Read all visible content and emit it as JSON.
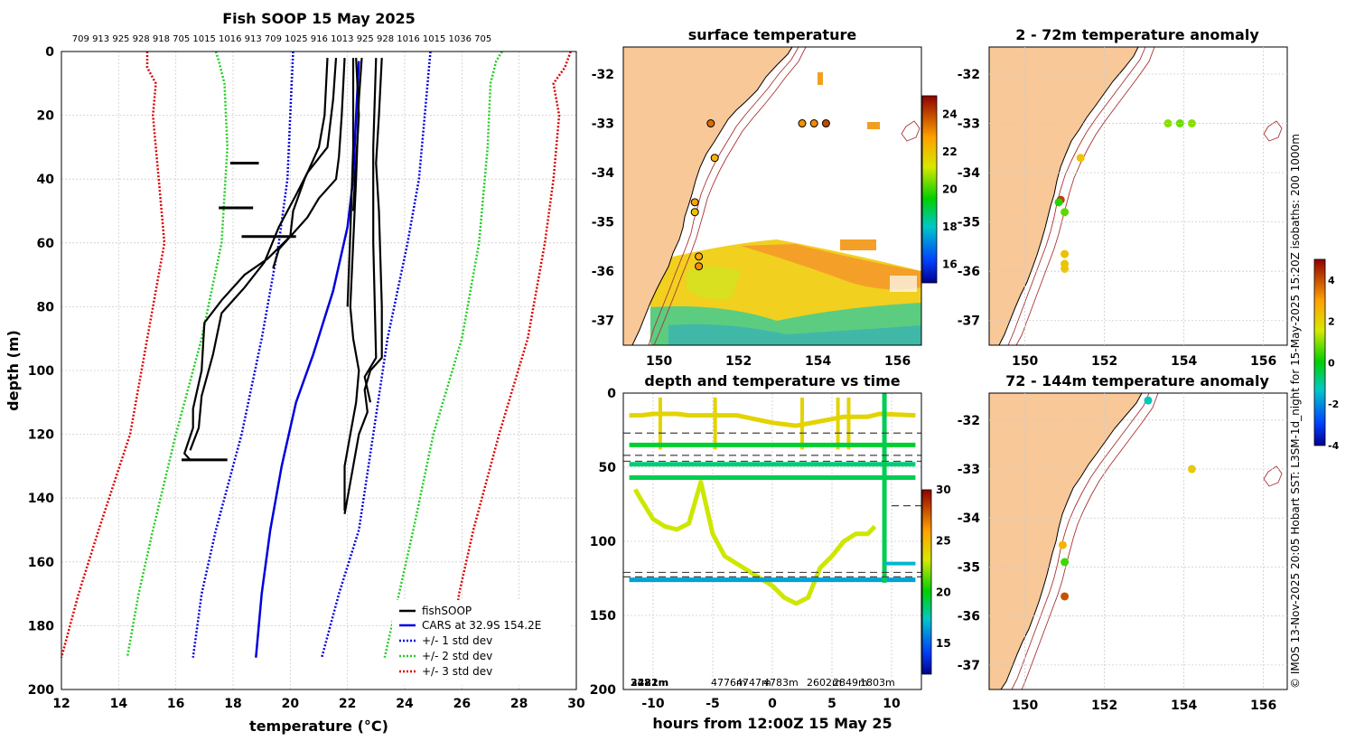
{
  "chart_data": [
    {
      "type": "line",
      "title": "Fish SOOP 15 May 2025",
      "xlabel": "temperature (°C)",
      "ylabel": "depth (m)",
      "xlim": [
        12,
        30
      ],
      "ylim": [
        200,
        0
      ],
      "xticks": [
        "12",
        "14",
        "16",
        "18",
        "20",
        "22",
        "24",
        "26",
        "28",
        "30"
      ],
      "yticks": [
        "0",
        "20",
        "40",
        "60",
        "80",
        "100",
        "120",
        "140",
        "160",
        "180",
        "200"
      ],
      "top_labels": "709 913 925 928 918 705 1015 1016 913 709 1025 916 1013 925 928 1016 1015 1036 705",
      "legend": [
        "fishSOOP",
        "CARS at 32.9S 154.2E",
        "+/- 1 std dev",
        "+/- 2 std dev",
        "+/- 3 std dev"
      ],
      "series": [
        {
          "name": "CARS mean",
          "color": "#0000dd",
          "style": "solid",
          "points": [
            [
              22.4,
              3
            ],
            [
              22.3,
              20
            ],
            [
              22.2,
              40
            ],
            [
              22,
              55
            ],
            [
              21.5,
              75
            ],
            [
              20.8,
              95
            ],
            [
              20.2,
              110
            ],
            [
              19.7,
              130
            ],
            [
              19.3,
              150
            ],
            [
              19.0,
              170
            ],
            [
              18.8,
              190
            ]
          ]
        },
        {
          "name": "+1 std",
          "color": "#0000dd",
          "style": "dotted",
          "points": [
            [
              24.9,
              0
            ],
            [
              24.7,
              20
            ],
            [
              24.5,
              40
            ],
            [
              24.1,
              60
            ],
            [
              23.4,
              90
            ],
            [
              22.9,
              120
            ],
            [
              22.4,
              150
            ],
            [
              21.7,
              170
            ],
            [
              21.1,
              190
            ]
          ]
        },
        {
          "name": "-1 std",
          "color": "#0000dd",
          "style": "dotted",
          "points": [
            [
              20.1,
              0
            ],
            [
              20.0,
              20
            ],
            [
              19.9,
              40
            ],
            [
              19.6,
              60
            ],
            [
              19.0,
              90
            ],
            [
              18.3,
              120
            ],
            [
              17.4,
              150
            ],
            [
              16.9,
              170
            ],
            [
              16.6,
              190
            ]
          ]
        },
        {
          "name": "+2 std",
          "color": "#22cc22",
          "style": "dotted",
          "points": [
            [
              27.4,
              0
            ],
            [
              27.2,
              3
            ],
            [
              27.0,
              10
            ],
            [
              26.9,
              30
            ],
            [
              26.6,
              60
            ],
            [
              26.0,
              90
            ],
            [
              25.0,
              120
            ],
            [
              24.3,
              150
            ],
            [
              23.8,
              170
            ],
            [
              23.3,
              190
            ]
          ]
        },
        {
          "name": "-2 std",
          "color": "#22cc22",
          "style": "dotted",
          "points": [
            [
              17.4,
              0
            ],
            [
              17.5,
              3
            ],
            [
              17.7,
              10
            ],
            [
              17.8,
              30
            ],
            [
              17.6,
              60
            ],
            [
              16.9,
              90
            ],
            [
              16.0,
              120
            ],
            [
              15.2,
              150
            ],
            [
              14.7,
              170
            ],
            [
              14.3,
              190
            ]
          ]
        },
        {
          "name": "+3 std",
          "color": "#dd0000",
          "style": "dotted",
          "points": [
            [
              29.8,
              0
            ],
            [
              29.6,
              5
            ],
            [
              29.2,
              10
            ],
            [
              29.4,
              20
            ],
            [
              29.2,
              40
            ],
            [
              28.9,
              60
            ],
            [
              28.3,
              90
            ],
            [
              27.3,
              120
            ],
            [
              26.4,
              150
            ],
            [
              25.9,
              170
            ],
            [
              25.6,
              190
            ]
          ]
        },
        {
          "name": "-3 std",
          "color": "#dd0000",
          "style": "dotted",
          "points": [
            [
              15.0,
              0
            ],
            [
              15.0,
              5
            ],
            [
              15.3,
              10
            ],
            [
              15.2,
              20
            ],
            [
              15.4,
              40
            ],
            [
              15.6,
              60
            ],
            [
              15.0,
              90
            ],
            [
              14.4,
              120
            ],
            [
              13.3,
              150
            ],
            [
              12.6,
              170
            ],
            [
              12.0,
              190
            ]
          ]
        }
      ],
      "profiles": [
        {
          "name": "fishSOOP A",
          "points": [
            [
              21.3,
              2
            ],
            [
              21.2,
              20
            ],
            [
              21.0,
              30
            ],
            [
              20.5,
              40
            ],
            [
              20.1,
              50
            ],
            [
              20.0,
              58
            ],
            [
              19.2,
              65
            ],
            [
              18.4,
              70
            ],
            [
              17.6,
              78
            ],
            [
              17.0,
              85
            ],
            [
              16.9,
              100
            ],
            [
              16.6,
              112
            ],
            [
              16.6,
              118
            ],
            [
              16.3,
              126
            ],
            [
              16.5,
              128
            ]
          ]
        },
        {
          "name": "fishSOOP B",
          "points": [
            [
              21.6,
              2
            ],
            [
              21.5,
              15
            ],
            [
              21.3,
              30
            ],
            [
              20.6,
              38
            ],
            [
              20.2,
              45
            ],
            [
              19.6,
              55
            ],
            [
              19.1,
              66
            ],
            [
              18.4,
              74
            ],
            [
              17.6,
              82
            ],
            [
              17.3,
              95
            ],
            [
              16.9,
              108
            ],
            [
              16.8,
              118
            ],
            [
              16.5,
              125
            ]
          ]
        },
        {
          "name": "fishSOOP C",
          "points": [
            [
              21.9,
              2
            ],
            [
              21.8,
              20
            ],
            [
              21.7,
              33
            ],
            [
              21.6,
              40
            ],
            [
              21.0,
              46
            ],
            [
              20.6,
              52
            ],
            [
              19.6,
              62
            ],
            [
              19.4,
              68
            ]
          ]
        },
        {
          "name": "fishSOOP D",
          "points": [
            [
              22.5,
              2
            ],
            [
              22.4,
              15
            ],
            [
              22.3,
              40
            ],
            [
              22.2,
              60
            ],
            [
              22.1,
              80
            ],
            [
              22.2,
              90
            ],
            [
              22.4,
              100
            ],
            [
              22.3,
              110
            ],
            [
              22.1,
              120
            ],
            [
              21.9,
              130
            ],
            [
              21.9,
              144
            ]
          ]
        },
        {
          "name": "fishSOOP E",
          "points": [
            [
              23.2,
              2
            ],
            [
              23.1,
              20
            ],
            [
              23.0,
              35
            ],
            [
              23.1,
              50
            ],
            [
              23.2,
              80
            ],
            [
              23.2,
              96
            ],
            [
              22.8,
              100
            ],
            [
              22.6,
              106
            ],
            [
              22.7,
              113
            ],
            [
              22.4,
              120
            ],
            [
              22.2,
              130
            ],
            [
              22.0,
              140
            ],
            [
              21.9,
              145
            ]
          ]
        },
        {
          "name": "fishSOOP F",
          "points": [
            [
              23.0,
              2
            ],
            [
              22.9,
              30
            ],
            [
              22.9,
              60
            ],
            [
              23.0,
              96
            ],
            [
              22.6,
              102
            ],
            [
              22.8,
              110
            ]
          ]
        },
        {
          "name": "fishSOOP G",
          "points": [
            [
              22.2,
              2
            ],
            [
              22.2,
              30
            ],
            [
              22.1,
              57
            ],
            [
              22.0,
              80
            ]
          ]
        },
        {
          "name": "fishSOOP H",
          "points": [
            [
              22.3,
              2
            ],
            [
              22.4,
              20
            ],
            [
              22.2,
              50
            ]
          ]
        }
      ],
      "spikes": [
        [
          17.9,
          35,
          18.9
        ],
        [
          17.5,
          49,
          18.7
        ],
        [
          18.3,
          58,
          20.2
        ],
        [
          16.2,
          128,
          17.8
        ]
      ]
    },
    {
      "type": "heatmap",
      "title": "surface temperature",
      "xticks": [
        "150",
        "152",
        "154",
        "156"
      ],
      "yticks": [
        "-32",
        "-33",
        "-34",
        "-35",
        "-36",
        "-37"
      ],
      "colorbar": {
        "ticks": [
          "16",
          "18",
          "20",
          "22",
          "24"
        ],
        "range": [
          15,
          25
        ]
      },
      "points": [
        [
          151.3,
          -33.0,
          23.5
        ],
        [
          153.6,
          -33.0,
          23.0
        ],
        [
          153.9,
          -33.0,
          23.1
        ],
        [
          154.2,
          -33.0,
          24.0
        ],
        [
          151.4,
          -33.7,
          22.4
        ],
        [
          150.9,
          -34.6,
          22.8
        ],
        [
          150.9,
          -34.8,
          22.0
        ],
        [
          151.0,
          -35.7,
          22.6
        ],
        [
          151.0,
          -35.9,
          23.0
        ]
      ]
    },
    {
      "type": "scatter",
      "title": "2 - 72m temperature anomaly",
      "xticks": [
        "150",
        "152",
        "154",
        "156"
      ],
      "yticks": [
        "-32",
        "-33",
        "-34",
        "-35",
        "-36",
        "-37"
      ],
      "colorbar": {
        "ticks": [
          "-4",
          "-2",
          "0",
          "2",
          "4"
        ],
        "range": [
          -4,
          5
        ]
      },
      "points": [
        [
          151.4,
          -33.7,
          2.3
        ],
        [
          153.6,
          -33.0,
          1.0
        ],
        [
          153.9,
          -33.0,
          0.8
        ],
        [
          154.2,
          -33.0,
          1.0
        ],
        [
          150.9,
          -34.55,
          4.2
        ],
        [
          150.85,
          -34.6,
          0.3
        ],
        [
          151.0,
          -34.8,
          0.7
        ],
        [
          151.0,
          -35.65,
          2.4
        ],
        [
          151.0,
          -35.85,
          2.3
        ],
        [
          151.0,
          -35.95,
          2.3
        ]
      ]
    },
    {
      "type": "scatter",
      "title": "72 - 144m temperature anomaly",
      "xticks": [
        "150",
        "152",
        "154",
        "156"
      ],
      "yticks": [
        "-32",
        "-33",
        "-34",
        "-35",
        "-36",
        "-37"
      ],
      "points": [
        [
          153.1,
          -31.6,
          -1.2
        ],
        [
          154.2,
          -33.0,
          2.2
        ],
        [
          150.95,
          -34.55,
          2.6
        ],
        [
          151.0,
          -34.9,
          0.5
        ],
        [
          151.0,
          -35.6,
          4.0
        ]
      ]
    },
    {
      "type": "scatter",
      "title": "depth and temperature vs time",
      "xlabel": "hours from 12:00Z 15 May 25",
      "xticks": [
        "-10",
        "-5",
        "0",
        "5",
        "10"
      ],
      "yticks": [
        "0",
        "50",
        "100",
        "150",
        "200"
      ],
      "colorbar": {
        "ticks": [
          "15",
          "20",
          "25",
          "30"
        ],
        "range": [
          12,
          30
        ]
      },
      "bottom_labels": [
        "3481m",
        "2222m",
        "4776m",
        "4747m",
        "4783m",
        "2602m",
        "2849m",
        "1803m"
      ],
      "dashed_depths": [
        27,
        42,
        46,
        76,
        121,
        124
      ],
      "tracks": [
        {
          "t0": -12,
          "t1": 12,
          "depth": 35,
          "temp": 19.5
        },
        {
          "t0": -12,
          "t1": 12,
          "depth": 48,
          "temp": 18.5
        },
        {
          "t0": -12,
          "t1": 12,
          "depth": 57,
          "temp": 19.0
        },
        {
          "t0": -12,
          "t1": 12,
          "depth": 126,
          "temp": 16.5
        }
      ]
    }
  ],
  "side_text": "© IMOS 13-Nov-2025 20:05 Hobart SST: L3SM-1d_night for 15-May-2025 15:20Z isobaths: 200  1000m"
}
